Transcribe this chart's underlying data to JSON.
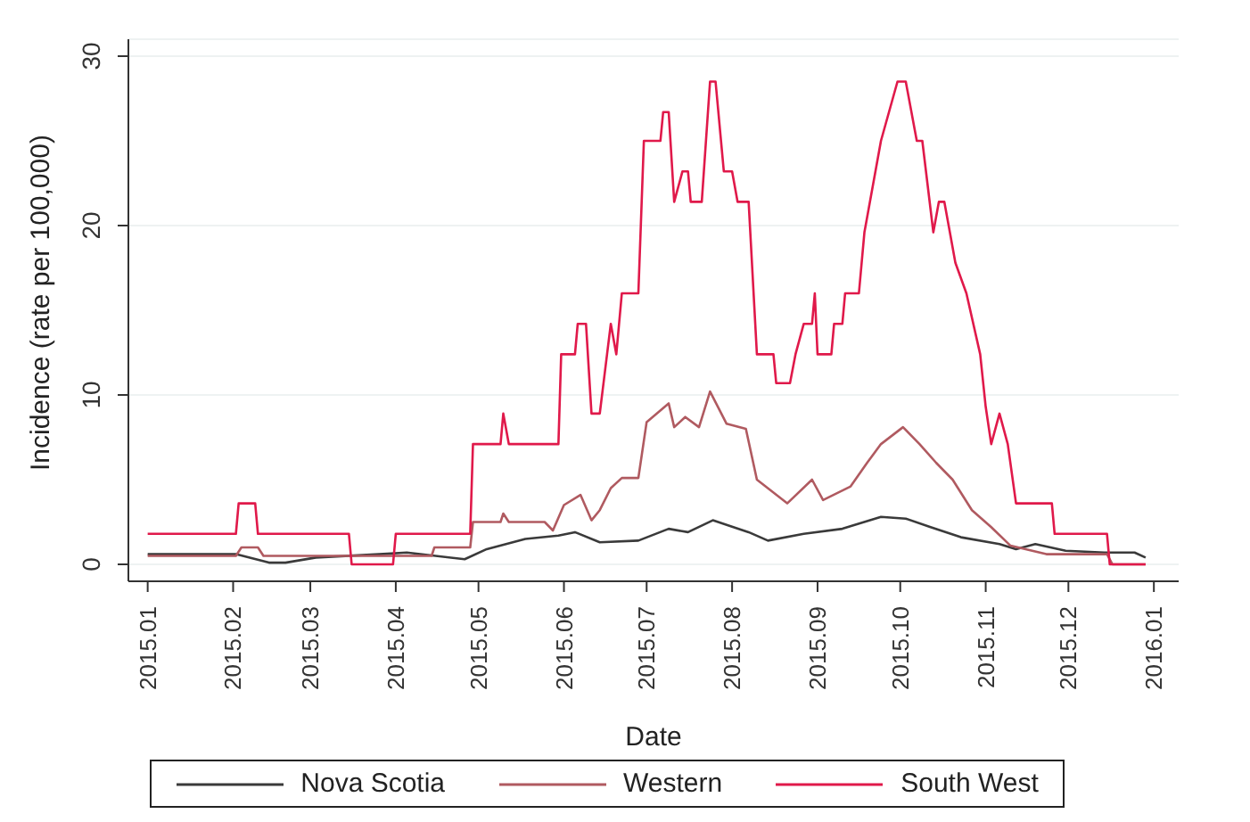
{
  "chart_data": {
    "type": "line",
    "xlabel": "Date",
    "ylabel": "Incidence (rate per 100,000)",
    "xlim": [
      "2014-12-25",
      "2016-01-10"
    ],
    "xticks": [
      {
        "value": "2015-01-01",
        "label": "2015.01"
      },
      {
        "value": "2015-02-01",
        "label": "2015.02"
      },
      {
        "value": "2015-03-01",
        "label": "2015.03"
      },
      {
        "value": "2015-04-01",
        "label": "2015.04"
      },
      {
        "value": "2015-05-01",
        "label": "2015.05"
      },
      {
        "value": "2015-06-01",
        "label": "2015.06"
      },
      {
        "value": "2015-07-01",
        "label": "2015.07"
      },
      {
        "value": "2015-08-01",
        "label": "2015.08"
      },
      {
        "value": "2015-09-01",
        "label": "2015.09"
      },
      {
        "value": "2015-10-01",
        "label": "2015.10"
      },
      {
        "value": "2015-11-01",
        "label": "2015.11"
      },
      {
        "value": "2015-12-01",
        "label": "2015.12"
      },
      {
        "value": "2016-01-01",
        "label": "2016.01"
      }
    ],
    "ylim": [
      -1,
      31
    ],
    "yticks": [
      0,
      10,
      20,
      30
    ],
    "grid": "y",
    "legend": "bottom",
    "marker": "none",
    "line_style": "solid",
    "series": [
      {
        "name": "Nova Scotia",
        "color": "#3a3a3a",
        "x": [
          "2015-01-01",
          "2015-02-02",
          "2015-02-14",
          "2015-02-20",
          "2015-03-03",
          "2015-03-26",
          "2015-04-05",
          "2015-04-26",
          "2015-05-04",
          "2015-05-18",
          "2015-05-30",
          "2015-06-05",
          "2015-06-14",
          "2015-06-28",
          "2015-07-09",
          "2015-07-16",
          "2015-07-25",
          "2015-08-07",
          "2015-08-14",
          "2015-08-27",
          "2015-09-10",
          "2015-09-24",
          "2015-10-03",
          "2015-10-12",
          "2015-10-23",
          "2015-11-06",
          "2015-11-12",
          "2015-11-19",
          "2015-11-30",
          "2015-12-14",
          "2015-12-25",
          "2015-12-29"
        ],
        "values": [
          0.6,
          0.6,
          0.1,
          0.1,
          0.4,
          0.6,
          0.7,
          0.3,
          0.9,
          1.5,
          1.7,
          1.9,
          1.3,
          1.4,
          2.1,
          1.9,
          2.6,
          1.9,
          1.4,
          1.8,
          2.1,
          2.8,
          2.7,
          2.2,
          1.6,
          1.2,
          0.9,
          1.2,
          0.8,
          0.7,
          0.7,
          0.4
        ]
      },
      {
        "name": "Western",
        "color": "#b05a60",
        "x": [
          "2015-01-01",
          "2015-02-02",
          "2015-02-04",
          "2015-02-10",
          "2015-02-12",
          "2015-04-14",
          "2015-04-15",
          "2015-04-28",
          "2015-04-29",
          "2015-05-09",
          "2015-05-10",
          "2015-05-12",
          "2015-05-25",
          "2015-05-28",
          "2015-06-01",
          "2015-06-07",
          "2015-06-11",
          "2015-06-14",
          "2015-06-18",
          "2015-06-22",
          "2015-06-28",
          "2015-07-01",
          "2015-07-09",
          "2015-07-11",
          "2015-07-15",
          "2015-07-20",
          "2015-07-24",
          "2015-07-30",
          "2015-08-06",
          "2015-08-10",
          "2015-08-21",
          "2015-08-30",
          "2015-09-03",
          "2015-09-13",
          "2015-09-19",
          "2015-09-24",
          "2015-10-02",
          "2015-10-08",
          "2015-10-14",
          "2015-10-20",
          "2015-10-27",
          "2015-11-03",
          "2015-11-10",
          "2015-11-23",
          "2015-12-15",
          "2015-12-17",
          "2015-12-29"
        ],
        "values": [
          0.5,
          0.5,
          1.0,
          1.0,
          0.5,
          0.5,
          1.0,
          1.0,
          2.5,
          2.5,
          3.0,
          2.5,
          2.5,
          2.0,
          3.5,
          4.1,
          2.6,
          3.2,
          4.5,
          5.1,
          5.1,
          8.4,
          9.5,
          8.1,
          8.7,
          8.1,
          10.2,
          8.3,
          8.0,
          5.0,
          3.6,
          5.0,
          3.8,
          4.6,
          6.0,
          7.1,
          8.1,
          7.1,
          6.0,
          5.0,
          3.2,
          2.2,
          1.1,
          0.6,
          0.6,
          0,
          0
        ]
      },
      {
        "name": "South West",
        "color": "#e0194a",
        "x": [
          "2015-01-01",
          "2015-02-02",
          "2015-02-03",
          "2015-02-09",
          "2015-02-10",
          "2015-03-15",
          "2015-03-16",
          "2015-03-31",
          "2015-04-01",
          "2015-04-28",
          "2015-04-29",
          "2015-05-09",
          "2015-05-10",
          "2015-05-12",
          "2015-05-30",
          "2015-05-31",
          "2015-06-05",
          "2015-06-06",
          "2015-06-09",
          "2015-06-11",
          "2015-06-14",
          "2015-06-18",
          "2015-06-20",
          "2015-06-22",
          "2015-06-28",
          "2015-06-30",
          "2015-07-06",
          "2015-07-07",
          "2015-07-09",
          "2015-07-11",
          "2015-07-14",
          "2015-07-16",
          "2015-07-17",
          "2015-07-21",
          "2015-07-24",
          "2015-07-26",
          "2015-07-29",
          "2015-08-01",
          "2015-08-03",
          "2015-08-07",
          "2015-08-10",
          "2015-08-16",
          "2015-08-17",
          "2015-08-22",
          "2015-08-24",
          "2015-08-27",
          "2015-08-30",
          "2015-08-31",
          "2015-09-01",
          "2015-09-06",
          "2015-09-07",
          "2015-09-10",
          "2015-09-11",
          "2015-09-16",
          "2015-09-18",
          "2015-09-24",
          "2015-09-30",
          "2015-10-03",
          "2015-10-07",
          "2015-10-09",
          "2015-10-13",
          "2015-10-15",
          "2015-10-17",
          "2015-10-19",
          "2015-10-21",
          "2015-10-25",
          "2015-10-30",
          "2015-11-01",
          "2015-11-03",
          "2015-11-06",
          "2015-11-09",
          "2015-11-12",
          "2015-11-25",
          "2015-11-26",
          "2015-12-15",
          "2015-12-16",
          "2015-12-29"
        ],
        "values": [
          1.8,
          1.8,
          3.6,
          3.6,
          1.8,
          1.8,
          0,
          0,
          1.8,
          1.8,
          7.1,
          7.1,
          8.9,
          7.1,
          7.1,
          12.4,
          12.4,
          14.2,
          14.2,
          8.9,
          8.9,
          14.2,
          12.4,
          16.0,
          16.0,
          25.0,
          25.0,
          26.7,
          26.7,
          21.4,
          23.2,
          23.2,
          21.4,
          21.4,
          28.5,
          28.5,
          23.2,
          23.2,
          21.4,
          21.4,
          12.4,
          12.4,
          10.7,
          10.7,
          12.4,
          14.2,
          14.2,
          16.0,
          12.4,
          12.4,
          14.2,
          14.2,
          16.0,
          16.0,
          19.6,
          25.0,
          28.5,
          28.5,
          25.0,
          25.0,
          19.6,
          21.4,
          21.4,
          19.6,
          17.8,
          16.0,
          12.4,
          9.3,
          7.1,
          8.9,
          7.1,
          3.6,
          3.6,
          1.8,
          1.8,
          0,
          0
        ]
      }
    ]
  }
}
